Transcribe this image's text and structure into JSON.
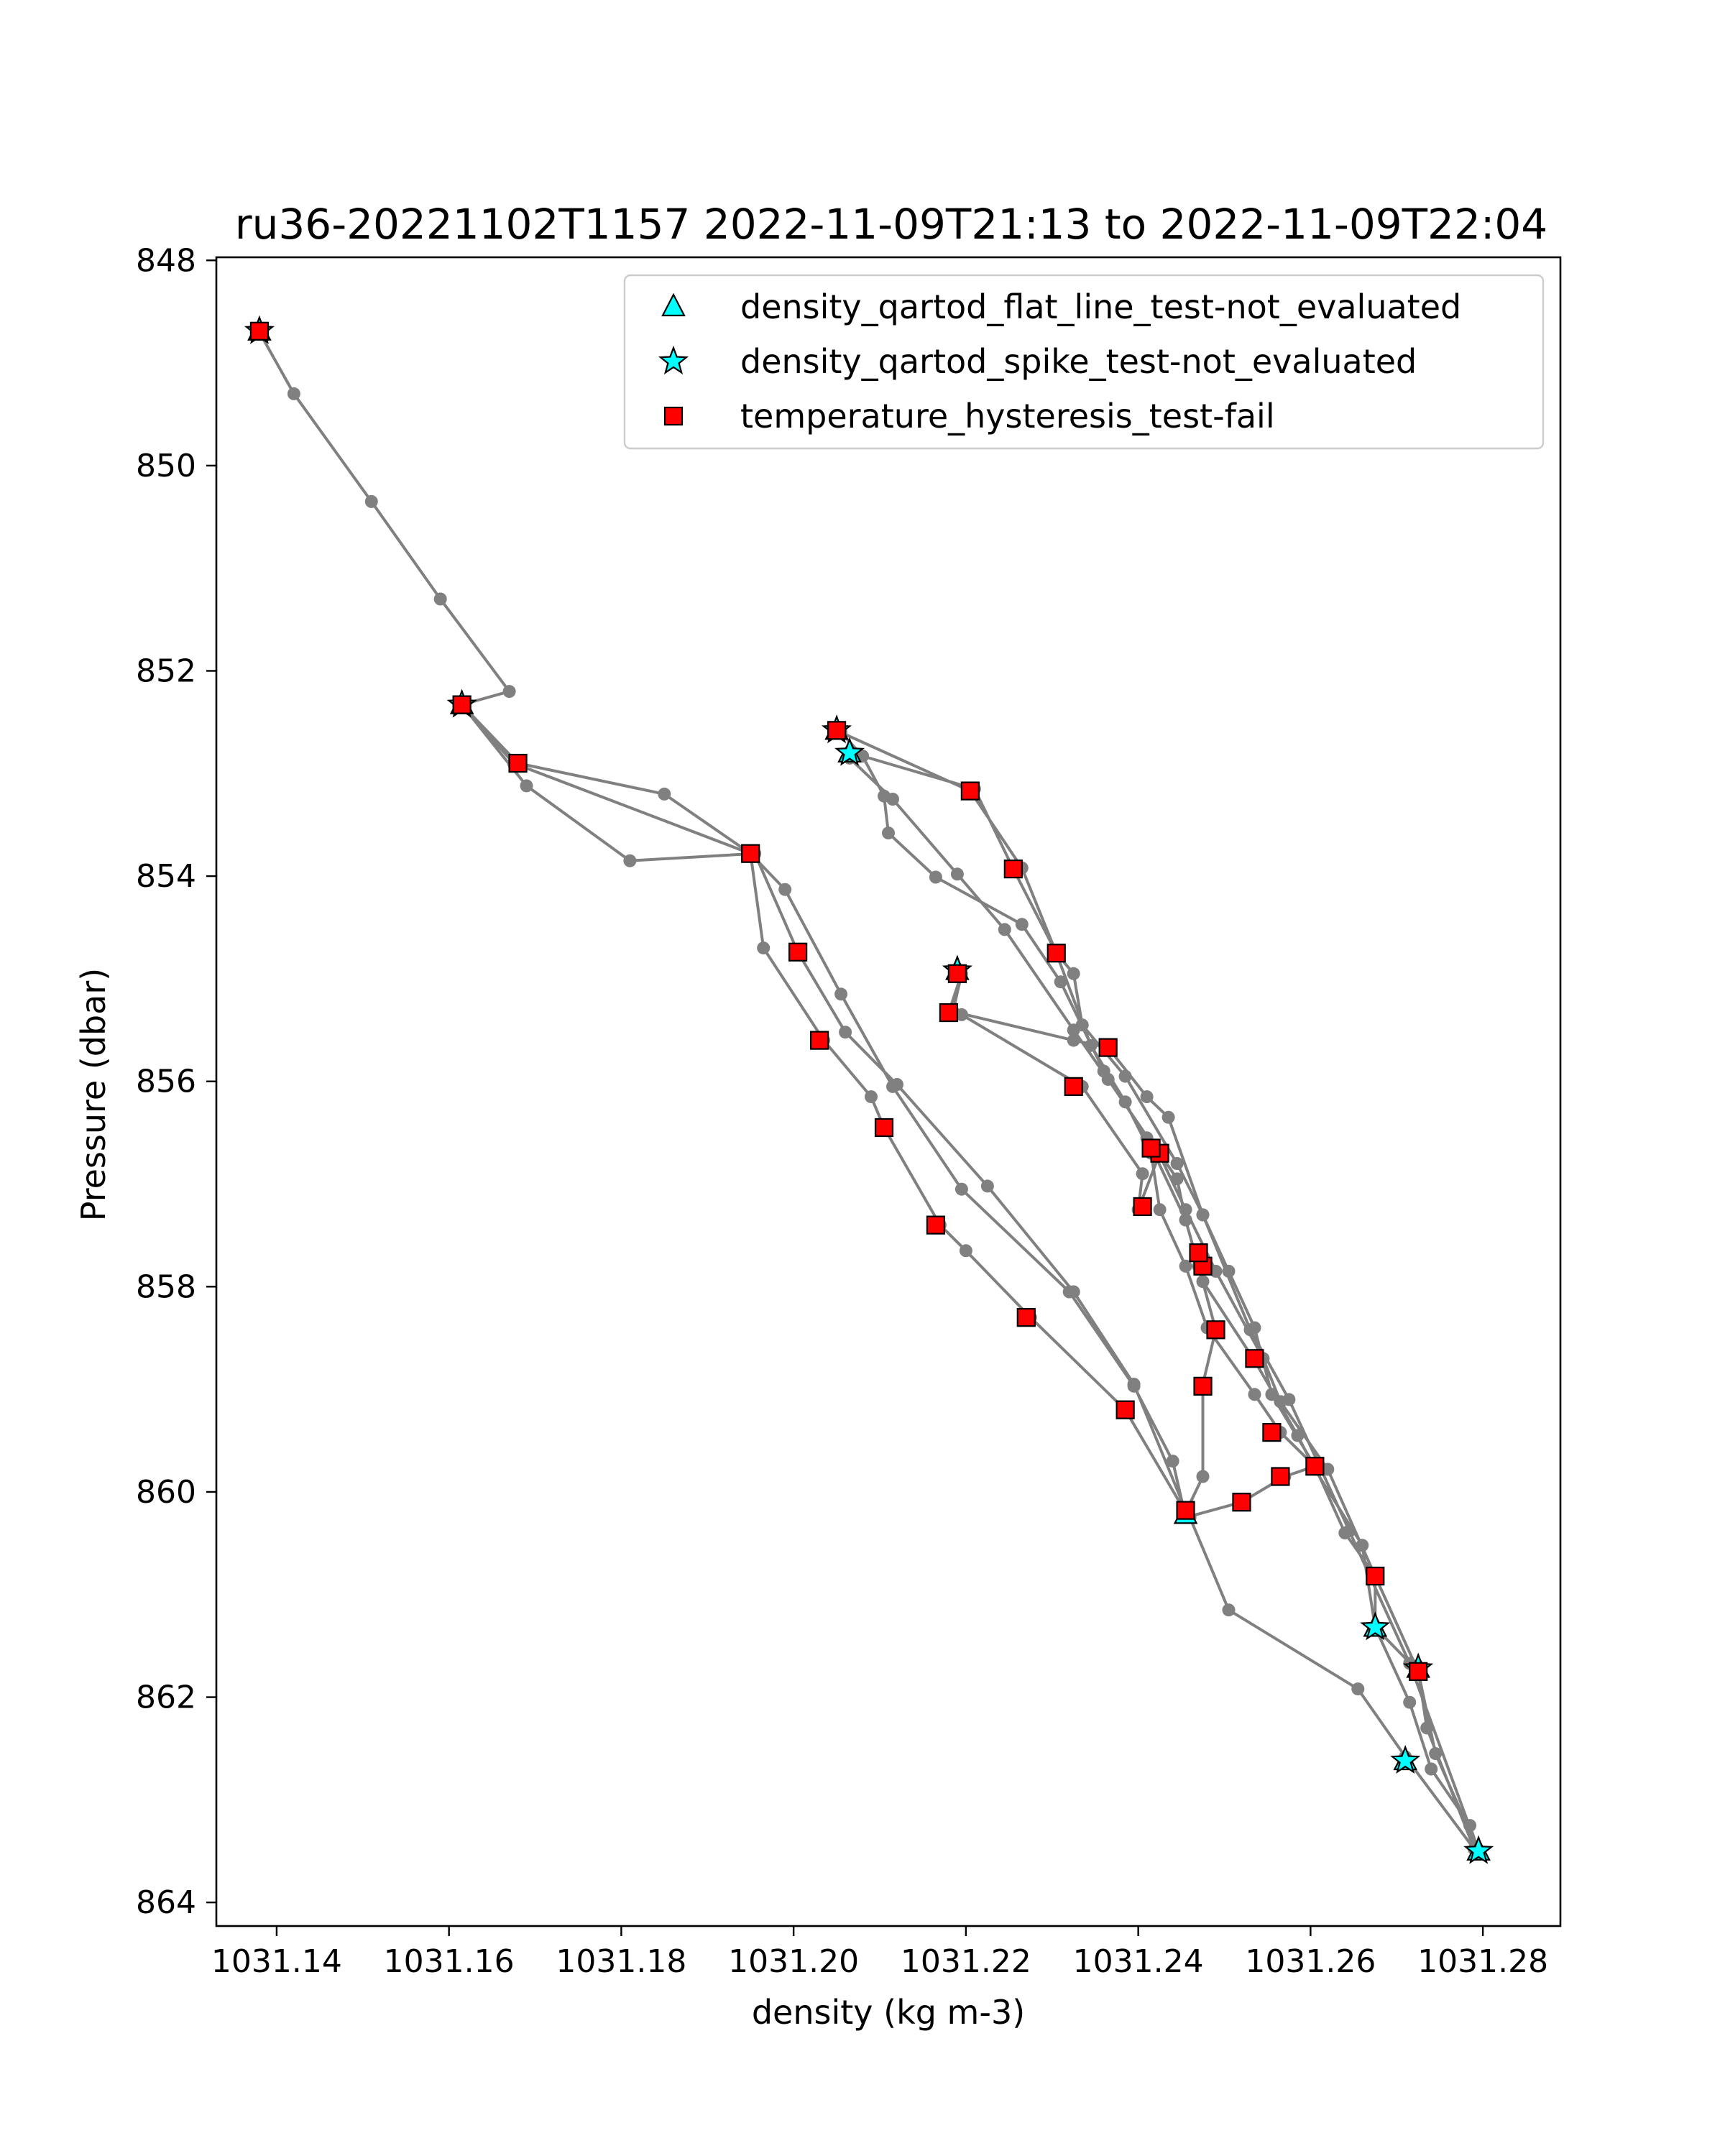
{
  "chart_data": {
    "type": "scatter",
    "title": "ru36-20221102T1157 2022-11-09T21:13 to 2022-11-09T22:04",
    "xlabel": "density (kg m-3)",
    "ylabel": "Pressure (dbar)",
    "xlim": [
      1031.133,
      1031.289
    ],
    "ylim": [
      864.23,
      847.97
    ],
    "y_inverted": true,
    "grid": false,
    "legend_position": "top-right",
    "xticks": [
      1031.14,
      1031.16,
      1031.18,
      1031.2,
      1031.22,
      1031.24,
      1031.26,
      1031.28
    ],
    "xtick_labels": [
      "1031.14",
      "1031.16",
      "1031.18",
      "1031.20",
      "1031.22",
      "1031.24",
      "1031.26",
      "1031.28"
    ],
    "yticks": [
      848,
      850,
      852,
      854,
      856,
      858,
      860,
      862,
      864
    ],
    "ytick_labels": [
      "848",
      "850",
      "852",
      "854",
      "856",
      "858",
      "860",
      "862",
      "864"
    ],
    "profile_color": "#808080",
    "profile": [
      [
        1031.138,
        848.7
      ],
      [
        1031.142,
        849.3
      ],
      [
        1031.151,
        850.35
      ],
      [
        1031.159,
        851.3
      ],
      [
        1031.167,
        852.2
      ],
      [
        1031.1615,
        852.33
      ],
      [
        1031.168,
        852.9
      ],
      [
        1031.185,
        853.2
      ],
      [
        1031.195,
        853.78
      ],
      [
        1031.199,
        854.13
      ],
      [
        1031.2055,
        855.15
      ],
      [
        1031.2115,
        856.05
      ],
      [
        1031.2195,
        857.05
      ],
      [
        1031.232,
        858.05
      ],
      [
        1031.2395,
        858.97
      ],
      [
        1031.244,
        859.7
      ],
      [
        1031.2455,
        860.25
      ],
      [
        1031.252,
        860.1
      ],
      [
        1031.257,
        859.85
      ],
      [
        1031.2605,
        859.75
      ],
      [
        1031.2565,
        859.42
      ],
      [
        1031.2535,
        859.05
      ],
      [
        1031.248,
        858.4
      ],
      [
        1031.2455,
        857.8
      ],
      [
        1031.2425,
        857.25
      ],
      [
        1031.2415,
        856.7
      ],
      [
        1031.2385,
        856.2
      ],
      [
        1031.2345,
        855.65
      ],
      [
        1031.2305,
        854.75
      ],
      [
        1031.2255,
        853.93
      ],
      [
        1031.221,
        853.15
      ],
      [
        1031.208,
        852.83
      ],
      [
        1031.2065,
        852.85
      ],
      [
        1031.2115,
        853.25
      ],
      [
        1031.219,
        853.98
      ],
      [
        1031.2245,
        854.52
      ],
      [
        1031.2325,
        855.5
      ],
      [
        1031.2365,
        855.98
      ],
      [
        1031.2425,
        856.72
      ],
      [
        1031.2455,
        857.25
      ],
      [
        1031.249,
        857.85
      ],
      [
        1031.2545,
        858.7
      ],
      [
        1031.2565,
        859.12
      ],
      [
        1031.262,
        859.78
      ],
      [
        1031.2675,
        860.82
      ],
      [
        1031.2675,
        861.32
      ],
      [
        1031.2725,
        861.75
      ],
      [
        1031.2745,
        862.55
      ],
      [
        1031.2795,
        863.5
      ],
      [
        1031.2785,
        863.25
      ],
      [
        1031.274,
        862.7
      ],
      [
        1031.2715,
        862.05
      ],
      [
        1031.2675,
        861.32
      ],
      [
        1031.266,
        860.52
      ],
      [
        1031.2605,
        859.78
      ],
      [
        1031.2585,
        859.45
      ],
      [
        1031.2535,
        858.72
      ],
      [
        1031.2475,
        857.95
      ],
      [
        1031.2455,
        857.35
      ],
      [
        1031.241,
        856.55
      ],
      [
        1031.236,
        855.9
      ],
      [
        1031.231,
        855.03
      ],
      [
        1031.2265,
        854.47
      ],
      [
        1031.2165,
        854.01
      ],
      [
        1031.211,
        853.58
      ],
      [
        1031.2105,
        853.22
      ],
      [
        1031.208,
        852.83
      ],
      [
        1031.2055,
        852.6
      ],
      [
        1031.2205,
        853.17
      ],
      [
        1031.2265,
        853.92
      ],
      [
        1031.2305,
        854.75
      ],
      [
        1031.2325,
        854.95
      ],
      [
        1031.2335,
        855.45
      ],
      [
        1031.2385,
        855.95
      ],
      [
        1031.2445,
        856.8
      ],
      [
        1031.2475,
        857.3
      ],
      [
        1031.2505,
        857.85
      ],
      [
        1031.2535,
        858.4
      ],
      [
        1031.2555,
        859.05
      ],
      [
        1031.2605,
        859.75
      ],
      [
        1031.264,
        860.4
      ],
      [
        1031.2675,
        860.82
      ],
      [
        1031.2725,
        861.75
      ],
      [
        1031.2735,
        862.3
      ],
      [
        1031.279,
        863.48
      ],
      [
        1031.271,
        862.58
      ],
      [
        1031.2655,
        861.92
      ],
      [
        1031.2505,
        861.15
      ],
      [
        1031.246,
        860.25
      ],
      [
        1031.2455,
        860.18
      ],
      [
        1031.2395,
        858.95
      ],
      [
        1031.2325,
        858.05
      ],
      [
        1031.2225,
        857.02
      ],
      [
        1031.212,
        856.03
      ],
      [
        1031.206,
        855.52
      ],
      [
        1031.2005,
        854.74
      ],
      [
        1031.1955,
        853.78
      ],
      [
        1031.181,
        853.85
      ],
      [
        1031.169,
        853.12
      ],
      [
        1031.1615,
        852.33
      ],
      [
        1031.1675,
        852.9
      ],
      [
        1031.195,
        853.78
      ],
      [
        1031.1965,
        854.7
      ],
      [
        1031.2035,
        855.6
      ],
      [
        1031.209,
        856.15
      ],
      [
        1031.2105,
        856.45
      ],
      [
        1031.217,
        857.4
      ],
      [
        1031.22,
        857.65
      ],
      [
        1031.2275,
        858.3
      ],
      [
        1031.2385,
        859.2
      ],
      [
        1031.2455,
        860.2
      ],
      [
        1031.2475,
        859.85
      ],
      [
        1031.2475,
        858.95
      ],
      [
        1031.249,
        858.42
      ],
      [
        1031.247,
        857.8
      ],
      [
        1031.2455,
        857.35
      ],
      [
        1031.2445,
        856.95
      ],
      [
        1031.2425,
        856.7
      ],
      [
        1031.24,
        857.25
      ],
      [
        1031.2405,
        856.9
      ],
      [
        1031.2335,
        856.05
      ],
      [
        1031.2195,
        855.35
      ],
      [
        1031.218,
        855.33
      ],
      [
        1031.2195,
        854.95
      ],
      [
        1031.2185,
        855.32
      ],
      [
        1031.2325,
        855.6
      ],
      [
        1031.2365,
        855.67
      ],
      [
        1031.241,
        856.15
      ],
      [
        1031.2435,
        856.35
      ],
      [
        1031.2475,
        857.3
      ],
      [
        1031.253,
        858.42
      ],
      [
        1031.2575,
        859.1
      ],
      [
        1031.2645,
        860.38
      ],
      [
        1031.2715,
        861.67
      ],
      [
        1031.2795,
        863.5
      ]
    ],
    "series": [
      {
        "name": "density_qartod_flat_line_test-not_evaluated",
        "marker": "triangle",
        "color": "#00FFFF",
        "points": [
          [
            1031.138,
            848.69
          ],
          [
            1031.1615,
            852.33
          ],
          [
            1031.205,
            852.58
          ],
          [
            1031.2065,
            852.8
          ],
          [
            1031.219,
            854.92
          ],
          [
            1031.2455,
            860.22
          ],
          [
            1031.2675,
            861.32
          ],
          [
            1031.2725,
            861.72
          ],
          [
            1031.271,
            862.62
          ],
          [
            1031.2795,
            863.5
          ]
        ]
      },
      {
        "name": "density_qartod_spike_test-not_evaluated",
        "marker": "star",
        "color": "#00FFFF",
        "points": [
          [
            1031.138,
            848.69
          ],
          [
            1031.1615,
            852.33
          ],
          [
            1031.205,
            852.58
          ],
          [
            1031.2065,
            852.8
          ],
          [
            1031.219,
            854.92
          ],
          [
            1031.2675,
            861.32
          ],
          [
            1031.2725,
            861.72
          ],
          [
            1031.271,
            862.62
          ],
          [
            1031.2795,
            863.5
          ]
        ]
      },
      {
        "name": "temperature_hysteresis_test-fail",
        "marker": "square",
        "color": "#FF0000",
        "points": [
          [
            1031.138,
            848.69
          ],
          [
            1031.1615,
            852.33
          ],
          [
            1031.168,
            852.9
          ],
          [
            1031.195,
            853.78
          ],
          [
            1031.2005,
            854.74
          ],
          [
            1031.203,
            855.6
          ],
          [
            1031.2105,
            856.45
          ],
          [
            1031.2165,
            857.4
          ],
          [
            1031.227,
            858.3
          ],
          [
            1031.2385,
            859.2
          ],
          [
            1031.2455,
            860.18
          ],
          [
            1031.252,
            860.1
          ],
          [
            1031.2565,
            859.85
          ],
          [
            1031.2605,
            859.75
          ],
          [
            1031.2555,
            859.42
          ],
          [
            1031.2535,
            858.7
          ],
          [
            1031.2475,
            858.97
          ],
          [
            1031.249,
            858.42
          ],
          [
            1031.2475,
            857.8
          ],
          [
            1031.247,
            857.67
          ],
          [
            1031.2425,
            856.7
          ],
          [
            1031.2415,
            856.65
          ],
          [
            1031.2405,
            857.22
          ],
          [
            1031.2325,
            856.05
          ],
          [
            1031.2365,
            855.67
          ],
          [
            1031.218,
            855.33
          ],
          [
            1031.219,
            854.95
          ],
          [
            1031.2305,
            854.75
          ],
          [
            1031.2255,
            853.93
          ],
          [
            1031.2205,
            853.17
          ],
          [
            1031.205,
            852.58
          ],
          [
            1031.2675,
            860.82
          ],
          [
            1031.2725,
            861.75
          ]
        ]
      }
    ]
  }
}
